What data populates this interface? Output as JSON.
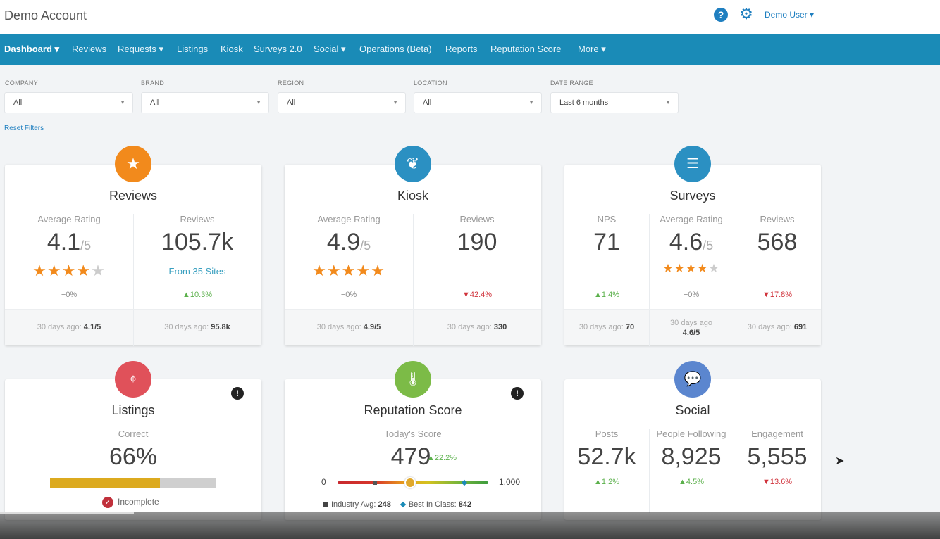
{
  "header": {
    "app_title": "Demo Account",
    "help_icon": "question-circle-icon",
    "settings_icon": "gear-icon",
    "user_label": "Demo User ▾"
  },
  "nav": {
    "items": [
      {
        "label": "Dashboard ▾",
        "active": true
      },
      {
        "label": "Reviews"
      },
      {
        "label": "Requests ▾"
      },
      {
        "label": "Listings"
      },
      {
        "label": "Kiosk"
      },
      {
        "label": "Surveys 2.0"
      },
      {
        "label": "Social ▾"
      },
      {
        "label": "Operations (Beta)"
      },
      {
        "label": "Reports"
      },
      {
        "label": "Reputation Score"
      },
      {
        "label": "More ▾"
      }
    ]
  },
  "filters": [
    {
      "label": "COMPANY",
      "value": "All"
    },
    {
      "label": "BRAND",
      "value": "All"
    },
    {
      "label": "REGION",
      "value": "All"
    },
    {
      "label": "LOCATION",
      "value": "All"
    },
    {
      "label": "DATE RANGE",
      "value": "Last 6 months"
    }
  ],
  "reset_filters": "Reset Filters",
  "cards": {
    "reviews": {
      "title": "Reviews",
      "icon": "star-icon",
      "color": "#f28a1c",
      "avg_label": "Average Rating",
      "avg_value": "4.1",
      "avg_unit": "/5",
      "stars_rating": 4.1,
      "avg_change": "≡0%",
      "count_label": "Reviews",
      "count_value": "105.7k",
      "sites": "From 35 Sites",
      "count_change": "▲10.3%",
      "foot_avg_label": "30 days ago:",
      "foot_avg_value": "4.1/5",
      "foot_count_label": "30 days ago:",
      "foot_count_value": "95.8k"
    },
    "kiosk": {
      "title": "Kiosk",
      "icon": "leaf-icon",
      "color": "#2b90c2",
      "avg_label": "Average Rating",
      "avg_value": "4.9",
      "avg_unit": "/5",
      "stars_rating": 4.9,
      "avg_change": "≡0%",
      "count_label": "Reviews",
      "count_value": "190",
      "count_change": "▼42.4%",
      "foot_avg_label": "30 days ago:",
      "foot_avg_value": "4.9/5",
      "foot_count_label": "30 days ago:",
      "foot_count_value": "330"
    },
    "surveys": {
      "title": "Surveys",
      "icon": "checklist-icon",
      "color": "#2b90c2",
      "nps_label": "NPS",
      "nps_value": "71",
      "nps_change": "▲1.4%",
      "avg_label": "Average Rating",
      "avg_value": "4.6",
      "avg_unit": "/5",
      "stars_rating": 4.6,
      "avg_change": "≡0%",
      "count_label": "Reviews",
      "count_value": "568",
      "count_change": "▼17.8%",
      "foot_nps_label": "30 days ago:",
      "foot_nps_value": "70",
      "foot_avg_label": "30 days ago",
      "foot_avg_value": "4.6/5",
      "foot_count_label": "30 days ago:",
      "foot_count_value": "691"
    },
    "listings": {
      "title": "Listings",
      "icon": "location-pin-icon",
      "color": "#e0515a",
      "alert_icon": "alert-icon",
      "correct_label": "Correct",
      "correct_value": "66%",
      "progress": 0.66,
      "status": "Incomplete"
    },
    "reputation": {
      "title": "Reputation Score",
      "icon": "thermometer-icon",
      "color": "#7cbb47",
      "alert_icon": "alert-icon",
      "today_label": "Today's Score",
      "score": "479",
      "score_change": "▲22.2%",
      "scale_min": "0",
      "scale_max": "1,000",
      "score_value": 479,
      "industry_avg_value": 248,
      "best_in_class_value": 842,
      "industry_label": "Industry Avg:",
      "industry_value": "248",
      "best_label": "Best In Class:",
      "best_value": "842"
    },
    "social": {
      "title": "Social",
      "icon": "chat-bubbles-icon",
      "color": "#5b86cf",
      "posts_label": "Posts",
      "posts_value": "52.7k",
      "posts_change": "▲1.2%",
      "following_label": "People Following",
      "following_value": "8,925",
      "following_change": "▲4.5%",
      "engagement_label": "Engagement",
      "engagement_value": "5,555",
      "engagement_change": "▼13.6%"
    }
  }
}
